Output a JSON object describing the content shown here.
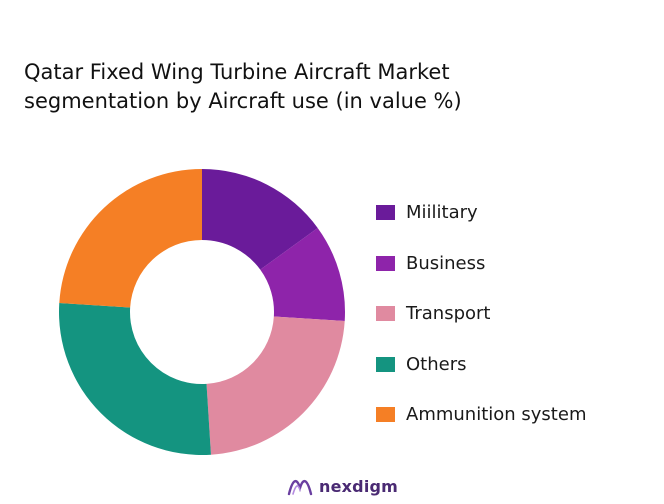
{
  "title_lines": [
    "Qatar Fixed Wing Turbine Aircraft Market",
    "segmentation by Aircraft use (in value %)"
  ],
  "chart_data": {
    "type": "pie",
    "donut": true,
    "title": "Qatar Fixed Wing Turbine Aircraft Market segmentation by Aircraft use (in value %)",
    "categories": [
      "Miilitary",
      "Business",
      "Transport",
      "Others",
      "Ammunition system"
    ],
    "values": [
      15,
      11,
      23,
      27,
      24
    ],
    "colors": [
      "#6a1b9a",
      "#8e24aa",
      "#e08aa0",
      "#149480",
      "#f57f25"
    ],
    "legend_position": "right"
  },
  "brand": {
    "name": "nexdigm",
    "icon": "nexdigm-logo-icon",
    "color": "#4a2a73"
  }
}
